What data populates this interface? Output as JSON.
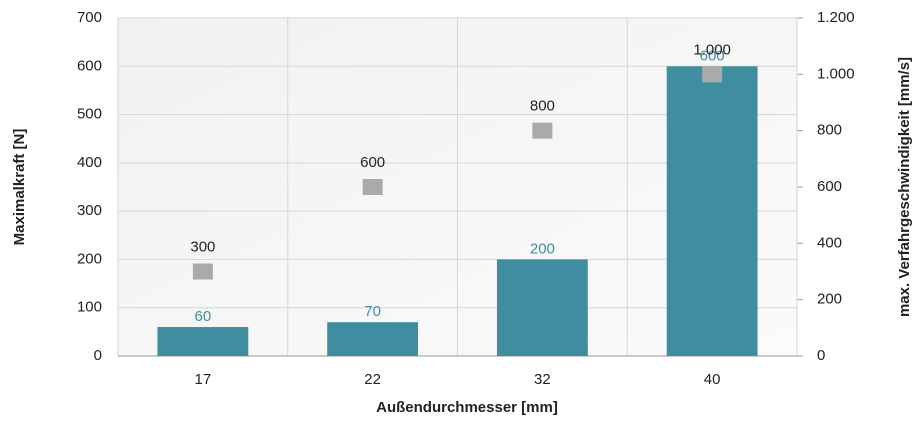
{
  "chart_data": {
    "type": "bar",
    "x_label": "Außendurchmesser [mm]",
    "y_label": "Maximalkraft [N]",
    "y2_label": "max. Verfahrgeschwindigkeit [mm/s]",
    "categories": [
      "17",
      "22",
      "32",
      "40"
    ],
    "series": [
      {
        "type": "bar",
        "color": "#3f8ea0",
        "values": [
          60,
          70,
          200,
          600
        ]
      },
      {
        "type": "scatter",
        "axis": "y2",
        "color": "#aaaaaa",
        "values": [
          300,
          600,
          800,
          1000
        ],
        "value_labels": [
          "300",
          "600",
          "800",
          "1.000"
        ]
      }
    ],
    "ylim": [
      0,
      700
    ],
    "yticks": [
      0,
      100,
      200,
      300,
      400,
      500,
      600,
      700
    ],
    "y2lim": [
      0,
      1200
    ],
    "y2ticks": [
      0,
      200,
      400,
      600,
      800,
      {
        "value": 1000,
        "label": "1.000"
      },
      {
        "value": 1200,
        "label": "1.200"
      }
    ],
    "grid": true
  }
}
